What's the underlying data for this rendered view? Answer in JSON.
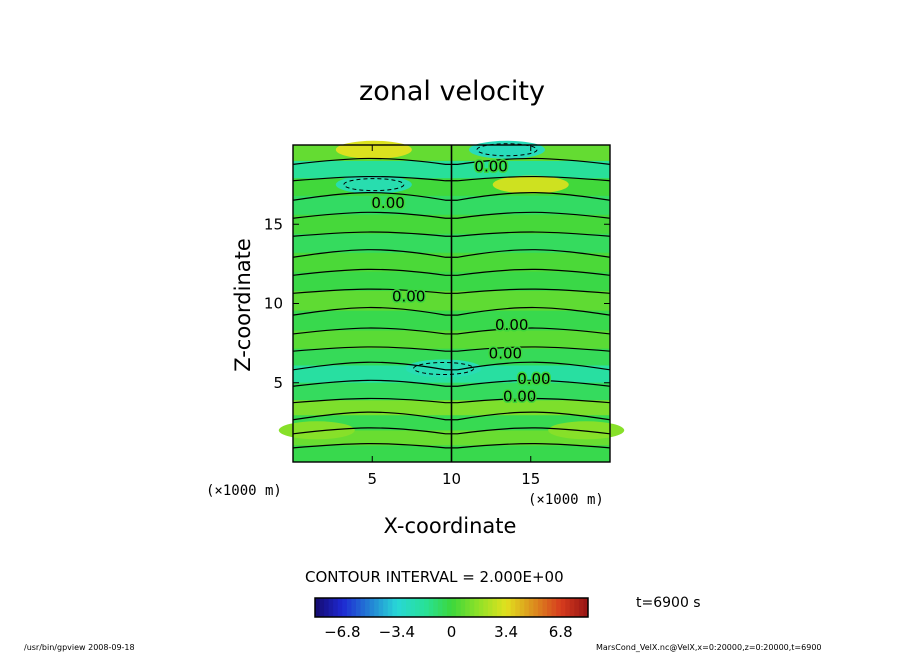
{
  "chart_data": {
    "type": "heatmap",
    "title": "zonal velocity",
    "xlabel": "X-coordinate",
    "ylabel": "Z-coordinate",
    "x_unit_label": "(×1000 m)",
    "y_unit_label": "(×1000 m)",
    "xlim": [
      0,
      20
    ],
    "ylim": [
      0,
      20
    ],
    "x_ticks": [
      5,
      10,
      15
    ],
    "y_ticks": [
      5,
      10,
      15
    ],
    "x_tick_labels": [
      "5",
      "10",
      "15"
    ],
    "y_tick_labels": [
      "5",
      "10",
      "15"
    ],
    "contour_interval_text": "CONTOUR INTERVAL = 2.000E+00",
    "contour_label_text": "0.00",
    "contour_labels": [
      {
        "x": 12.5,
        "z": 18.7
      },
      {
        "x": 6.0,
        "z": 16.4
      },
      {
        "x": 7.3,
        "z": 10.5
      },
      {
        "x": 13.8,
        "z": 8.7
      },
      {
        "x": 13.4,
        "z": 6.9
      },
      {
        "x": 15.2,
        "z": 5.3
      },
      {
        "x": 14.3,
        "z": 4.2
      }
    ],
    "bands": [
      {
        "z": 0.6,
        "v": -0.3
      },
      {
        "z": 1.5,
        "v": 0.9
      },
      {
        "z": 2.5,
        "v": -0.4
      },
      {
        "z": 3.4,
        "v": 1.3
      },
      {
        "z": 4.4,
        "v": -0.6
      },
      {
        "z": 5.6,
        "v": -1.9
      },
      {
        "z": 6.6,
        "v": -0.5
      },
      {
        "z": 7.7,
        "v": 0.6
      },
      {
        "z": 8.9,
        "v": -0.3
      },
      {
        "z": 10.2,
        "v": 0.7
      },
      {
        "z": 11.4,
        "v": -0.2
      },
      {
        "z": 12.6,
        "v": 0.3
      },
      {
        "z": 13.8,
        "v": -0.6
      },
      {
        "z": 15.0,
        "v": 0.2
      },
      {
        "z": 16.2,
        "v": -0.7
      },
      {
        "z": 17.4,
        "v": 0.1
      },
      {
        "z": 18.4,
        "v": -1.7
      },
      {
        "z": 19.6,
        "v": 0.8
      }
    ],
    "blobs": [
      {
        "x": 5.1,
        "z": 17.5,
        "v": -2.3
      },
      {
        "x": 15.0,
        "z": 17.5,
        "v": 3.0
      },
      {
        "x": 5.1,
        "z": 19.7,
        "v": 3.3
      },
      {
        "x": 13.5,
        "z": 19.7,
        "v": -2.6
      },
      {
        "x": 9.5,
        "z": 5.9,
        "v": -2.4
      },
      {
        "x": 1.5,
        "z": 2.0,
        "v": 1.5
      },
      {
        "x": 18.5,
        "z": 2.0,
        "v": 1.5
      }
    ],
    "colorbar": {
      "min": -8.5,
      "max": 8.5,
      "tick_values": [
        -6.8,
        -3.4,
        0,
        3.4,
        6.8
      ],
      "tick_labels": [
        "−6.8",
        "−3.4",
        "0",
        "3.4",
        "6.8"
      ]
    },
    "time_label": "t=6900 s",
    "footer_left": "/usr/bin/gpview   2008-09-18",
    "footer_right": "MarsCond_VelX.nc@VelX,x=0:20000,z=0:20000,t=6900"
  }
}
